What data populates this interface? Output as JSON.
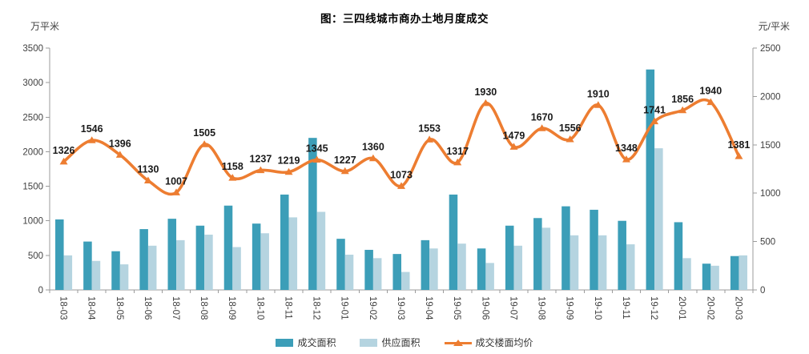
{
  "title": "图：三四线城市商办土地月度成交",
  "left_axis": {
    "unit": "万平米",
    "max": 3500,
    "step": 500,
    "ticks": [
      "3500",
      "3000",
      "2500",
      "2000",
      "1500",
      "1000",
      "500",
      "0"
    ]
  },
  "right_axis": {
    "unit": "元/平米",
    "max": 2500,
    "step": 500,
    "ticks": [
      "2500",
      "2000",
      "1500",
      "1000",
      "500",
      "0"
    ]
  },
  "colors": {
    "bar_dark": "#3c9eb8",
    "bar_light": "#b5d4e0",
    "line": "#ed7d31",
    "axis": "#9b9b9b",
    "tick_text": "#3f3f3f",
    "label_text": "#1a1a1a"
  },
  "legend": [
    {
      "label": "成交面积",
      "type": "bar",
      "color": "#3c9eb8"
    },
    {
      "label": "供应面积",
      "type": "bar",
      "color": "#b5d4e0"
    },
    {
      "label": "成交楼面均价",
      "type": "line",
      "color": "#ed7d31"
    }
  ],
  "chart_data": {
    "type": "bar+line combo",
    "categories": [
      "18-03",
      "18-04",
      "18-05",
      "18-06",
      "18-07",
      "18-08",
      "18-09",
      "18-10",
      "18-11",
      "18-12",
      "19-01",
      "19-02",
      "19-03",
      "19-04",
      "19-05",
      "19-06",
      "19-07",
      "19-08",
      "19-09",
      "19-10",
      "19-11",
      "19-12",
      "20-01",
      "20-02",
      "20-03"
    ],
    "series": [
      {
        "name": "成交面积",
        "type": "bar",
        "axis": "left",
        "color": "#3c9eb8",
        "values": [
          1020,
          700,
          560,
          880,
          1030,
          930,
          1220,
          960,
          1380,
          2200,
          740,
          580,
          520,
          720,
          1380,
          600,
          930,
          1040,
          1210,
          1160,
          1000,
          3190,
          980,
          380,
          490
        ]
      },
      {
        "name": "供应面积",
        "type": "bar",
        "axis": "left",
        "color": "#b5d4e0",
        "values": [
          500,
          420,
          370,
          640,
          720,
          800,
          620,
          820,
          1050,
          1130,
          510,
          460,
          260,
          600,
          670,
          390,
          640,
          900,
          790,
          790,
          660,
          2050,
          460,
          350,
          500
        ]
      },
      {
        "name": "成交楼面均价",
        "type": "line",
        "axis": "right",
        "color": "#ed7d31",
        "data_labels": true,
        "values": [
          1326,
          1546,
          1396,
          1130,
          1007,
          1505,
          1158,
          1237,
          1219,
          1345,
          1227,
          1360,
          1073,
          1553,
          1317,
          1930,
          1479,
          1670,
          1556,
          1910,
          1348,
          1741,
          1856,
          1940,
          1381
        ]
      }
    ],
    "ylabel_left": "万平米",
    "ylabel_right": "元/平米",
    "ylim_left": [
      0,
      3500
    ],
    "ylim_right": [
      0,
      2500
    ],
    "grid": false,
    "legend_position": "bottom"
  }
}
